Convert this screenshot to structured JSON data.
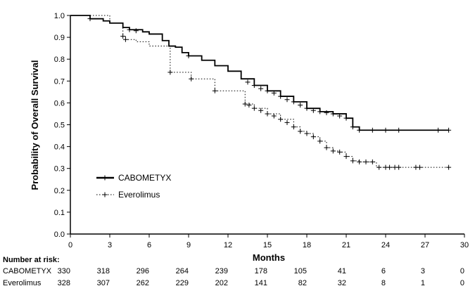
{
  "chart_data": {
    "type": "line",
    "title": "",
    "xlabel": "Months",
    "ylabel": "Probability of Overall Survival",
    "xlim": [
      0,
      30
    ],
    "ylim": [
      0,
      1.0
    ],
    "x_ticks": [
      "0",
      "3",
      "6",
      "9",
      "12",
      "15",
      "18",
      "21",
      "24",
      "27",
      "30"
    ],
    "y_ticks": [
      "0.0",
      "0.1",
      "0.2",
      "0.3",
      "0.4",
      "0.5",
      "0.6",
      "0.7",
      "0.8",
      "0.9",
      "1.0"
    ],
    "grid": false,
    "legend_position": "lower-left",
    "series": [
      {
        "name": "CABOMETYX",
        "style": "solid-thick",
        "color": "#000000",
        "points": [
          [
            0,
            1.0
          ],
          [
            1.2,
            1.0
          ],
          [
            1.5,
            0.985
          ],
          [
            2.5,
            0.975
          ],
          [
            3,
            0.965
          ],
          [
            4,
            0.945
          ],
          [
            4.5,
            0.935
          ],
          [
            5.5,
            0.925
          ],
          [
            6,
            0.915
          ],
          [
            7,
            0.885
          ],
          [
            7.5,
            0.86
          ],
          [
            8,
            0.855
          ],
          [
            8.5,
            0.83
          ],
          [
            9,
            0.815
          ],
          [
            10,
            0.795
          ],
          [
            11,
            0.77
          ],
          [
            12,
            0.745
          ],
          [
            13,
            0.71
          ],
          [
            14,
            0.68
          ],
          [
            15,
            0.655
          ],
          [
            16,
            0.63
          ],
          [
            17,
            0.605
          ],
          [
            18,
            0.575
          ],
          [
            19,
            0.56
          ],
          [
            20,
            0.55
          ],
          [
            21,
            0.53
          ],
          [
            21.5,
            0.49
          ],
          [
            22,
            0.475
          ],
          [
            22.5,
            0.475
          ],
          [
            28.8,
            0.475
          ]
        ],
        "censor_marks": [
          [
            1.5,
            0.985
          ],
          [
            4.5,
            0.935
          ],
          [
            5,
            0.93
          ],
          [
            9,
            0.815
          ],
          [
            13.5,
            0.695
          ],
          [
            14,
            0.68
          ],
          [
            14.5,
            0.665
          ],
          [
            15,
            0.655
          ],
          [
            15.5,
            0.645
          ],
          [
            16,
            0.63
          ],
          [
            16.5,
            0.615
          ],
          [
            17,
            0.605
          ],
          [
            17.5,
            0.59
          ],
          [
            18,
            0.575
          ],
          [
            18.5,
            0.565
          ],
          [
            19,
            0.56
          ],
          [
            19.5,
            0.555
          ],
          [
            20,
            0.55
          ],
          [
            20.5,
            0.54
          ],
          [
            21,
            0.53
          ],
          [
            21.5,
            0.49
          ],
          [
            22,
            0.475
          ],
          [
            23,
            0.475
          ],
          [
            24,
            0.475
          ],
          [
            25,
            0.475
          ],
          [
            28,
            0.475
          ],
          [
            28.8,
            0.475
          ]
        ]
      },
      {
        "name": "Everolimus",
        "style": "dotted",
        "color": "#000000",
        "points": [
          [
            0,
            1.0
          ],
          [
            3,
            0.965
          ],
          [
            4,
            0.905
          ],
          [
            4.2,
            0.89
          ],
          [
            5,
            0.88
          ],
          [
            6,
            0.86
          ],
          [
            7.6,
            0.74
          ],
          [
            9.2,
            0.71
          ],
          [
            11,
            0.655
          ],
          [
            13.3,
            0.595
          ],
          [
            14,
            0.575
          ],
          [
            15,
            0.55
          ],
          [
            16,
            0.525
          ],
          [
            17,
            0.49
          ],
          [
            17.5,
            0.47
          ],
          [
            18,
            0.46
          ],
          [
            18.5,
            0.445
          ],
          [
            19,
            0.425
          ],
          [
            19.5,
            0.395
          ],
          [
            20,
            0.38
          ],
          [
            20.5,
            0.375
          ],
          [
            21,
            0.355
          ],
          [
            21.5,
            0.335
          ],
          [
            22,
            0.33
          ],
          [
            23,
            0.33
          ],
          [
            23.3,
            0.305
          ],
          [
            24.5,
            0.305
          ],
          [
            28.8,
            0.305
          ]
        ],
        "censor_marks": [
          [
            4,
            0.905
          ],
          [
            4.2,
            0.89
          ],
          [
            7.6,
            0.74
          ],
          [
            9.2,
            0.71
          ],
          [
            11,
            0.655
          ],
          [
            13.3,
            0.595
          ],
          [
            13.6,
            0.59
          ],
          [
            14,
            0.575
          ],
          [
            14.5,
            0.565
          ],
          [
            15,
            0.55
          ],
          [
            15.5,
            0.54
          ],
          [
            16,
            0.525
          ],
          [
            16.5,
            0.51
          ],
          [
            17,
            0.49
          ],
          [
            17.5,
            0.47
          ],
          [
            18,
            0.46
          ],
          [
            18.5,
            0.445
          ],
          [
            19,
            0.425
          ],
          [
            19.5,
            0.395
          ],
          [
            20,
            0.38
          ],
          [
            20.5,
            0.375
          ],
          [
            21,
            0.355
          ],
          [
            21.5,
            0.335
          ],
          [
            22,
            0.33
          ],
          [
            22.5,
            0.33
          ],
          [
            23,
            0.33
          ],
          [
            23.5,
            0.305
          ],
          [
            24,
            0.305
          ],
          [
            24.3,
            0.305
          ],
          [
            24.7,
            0.305
          ],
          [
            25,
            0.305
          ],
          [
            26.3,
            0.305
          ],
          [
            26.6,
            0.305
          ],
          [
            28.8,
            0.305
          ]
        ]
      }
    ]
  },
  "risk_table": {
    "title": "Number at risk:",
    "timepoints": [
      0,
      3,
      6,
      9,
      12,
      15,
      18,
      21,
      24,
      27,
      30
    ],
    "rows": [
      {
        "label": "CABOMETYX",
        "values": [
          "330",
          "318",
          "296",
          "264",
          "239",
          "178",
          "105",
          "41",
          "6",
          "3",
          "0"
        ]
      },
      {
        "label": "Everolimus",
        "values": [
          "328",
          "307",
          "262",
          "229",
          "202",
          "141",
          "82",
          "32",
          "8",
          "1",
          "0"
        ]
      }
    ]
  }
}
